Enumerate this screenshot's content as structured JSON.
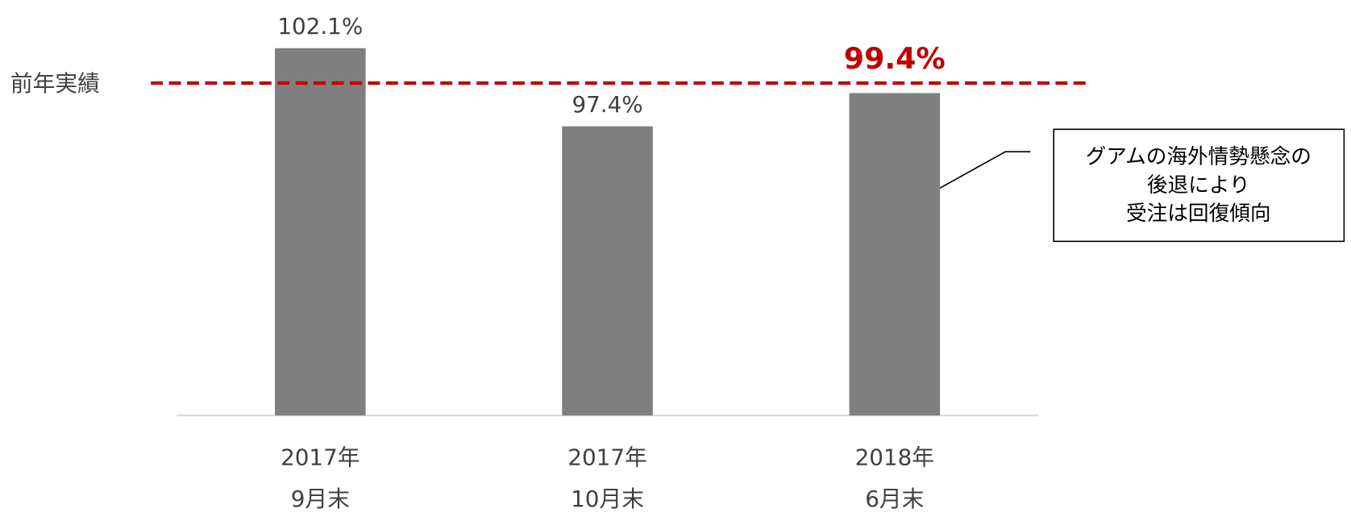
{
  "chart_data": {
    "type": "bar",
    "categories": [
      [
        "2017年",
        "9月末"
      ],
      [
        "2017年",
        "10月末"
      ],
      [
        "2018年",
        "6月末"
      ]
    ],
    "values": [
      102.1,
      97.4,
      99.4
    ],
    "value_labels": [
      "102.1%",
      "97.4%",
      "99.4%"
    ],
    "value_label_colors": [
      "#404040",
      "#404040",
      "#c00000"
    ],
    "color": "#7f7f7f",
    "ylim": [
      80,
      105
    ],
    "reference_line": {
      "value": 100,
      "label": "前年実績",
      "color": "#c00000"
    },
    "annotation": [
      "グアムの海外情勢懸念の",
      "後退により",
      "受注は回復傾向"
    ]
  }
}
